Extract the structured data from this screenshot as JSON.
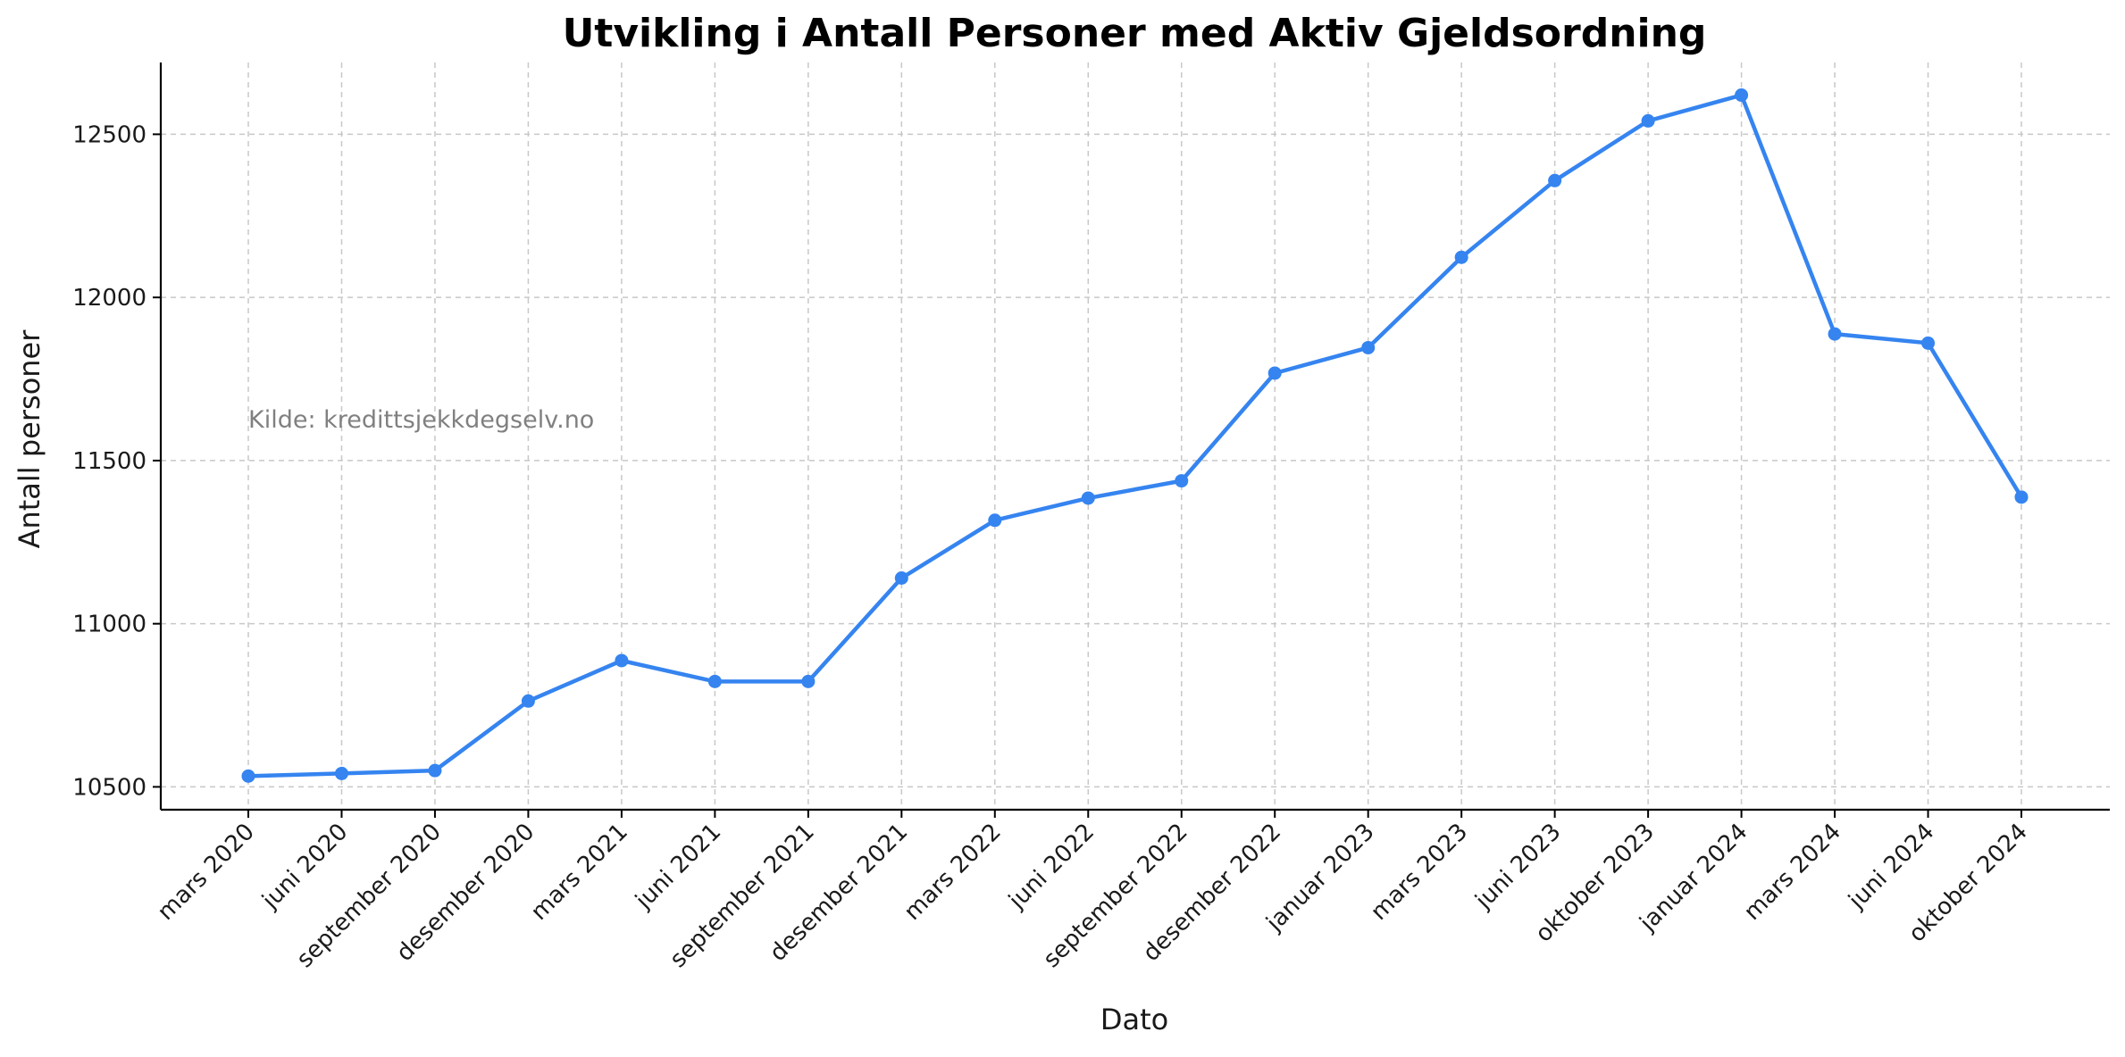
{
  "chart_data": {
    "type": "line",
    "title": "Utvikling i Antall Personer med Aktiv Gjeldsordning",
    "xlabel": "Dato",
    "ylabel": "Antall personer",
    "ylim": [
      10430,
      12720
    ],
    "y_ticks": [
      10500,
      11000,
      11500,
      12000,
      12500
    ],
    "grid": true,
    "annotation": "Kilde: kredittsjekkdegselv.no",
    "colors": {
      "line": "#3584f0"
    },
    "categories": [
      "mars 2020",
      "juni 2020",
      "september 2020",
      "desember 2020",
      "mars 2021",
      "juni 2021",
      "september 2021",
      "desember 2021",
      "mars 2022",
      "juni 2022",
      "september 2022",
      "desember 2022",
      "januar 2023",
      "mars 2023",
      "juni 2023",
      "oktober 2023",
      "januar 2024",
      "mars 2024",
      "juni 2024",
      "oktober 2024"
    ],
    "values": [
      10533,
      10541,
      10550,
      10763,
      10887,
      10823,
      10823,
      11140,
      11317,
      11385,
      11438,
      11768,
      11846,
      12123,
      12358,
      12541,
      12620,
      11888,
      11860,
      11388
    ]
  }
}
